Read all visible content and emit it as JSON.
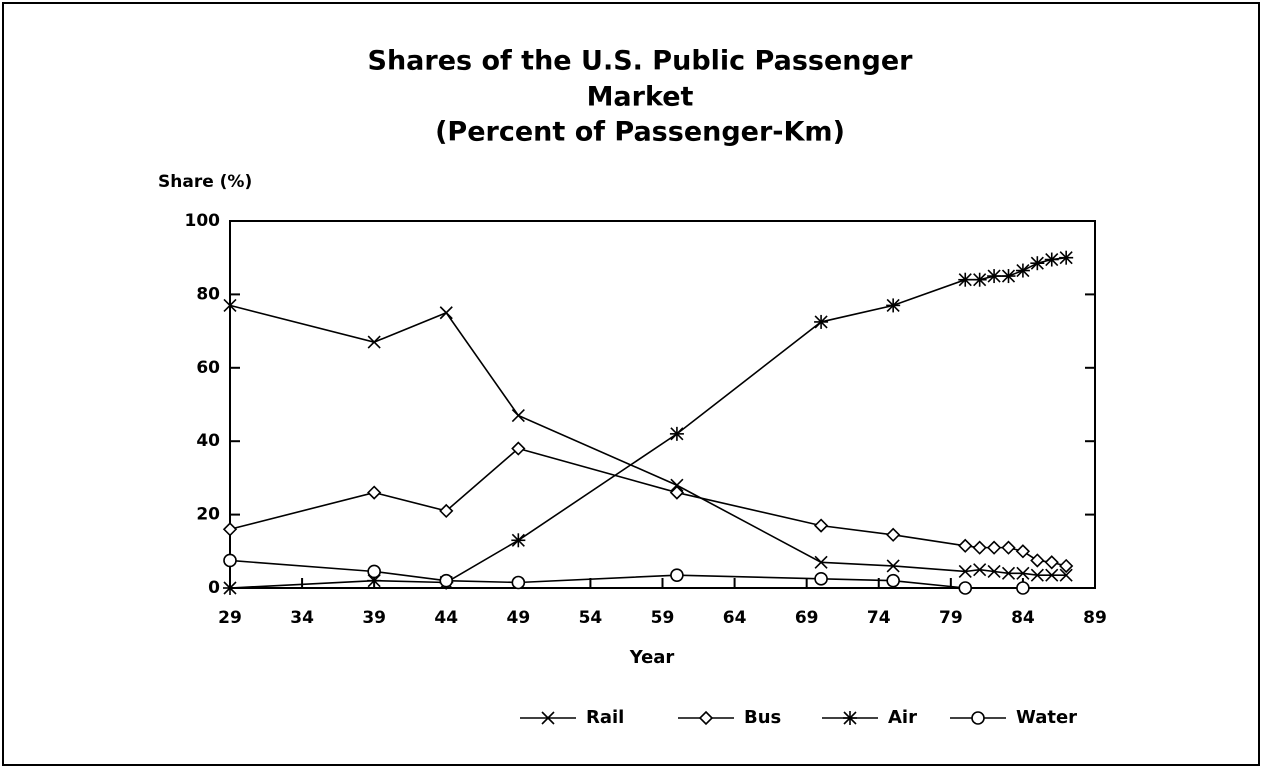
{
  "chart_data": {
    "type": "line",
    "title": [
      "Shares of the U.S. Public Passenger",
      "Market",
      "(Percent of Passenger-Km)"
    ],
    "y_label": "Share (%)",
    "x_label": "Year",
    "x": [
      29,
      39,
      44,
      49,
      60,
      70,
      75,
      80,
      81,
      82,
      83,
      84,
      85,
      86,
      87
    ],
    "xlim": [
      29,
      89
    ],
    "xticks": [
      29,
      34,
      39,
      44,
      49,
      54,
      59,
      64,
      69,
      74,
      79,
      84,
      89
    ],
    "ylim": [
      0,
      100
    ],
    "yticks": [
      0,
      20,
      40,
      60,
      80,
      100
    ],
    "series": [
      {
        "name": "Rail",
        "color": "#000000",
        "marker": "x",
        "values": [
          77,
          67,
          75,
          47,
          28,
          7,
          6,
          4.5,
          5,
          4.5,
          4,
          4,
          3.5,
          3.5,
          3.5
        ]
      },
      {
        "name": "Bus",
        "color": "#000000",
        "marker": "diamond",
        "values": [
          16,
          26,
          21,
          38,
          26,
          17,
          14.5,
          11.5,
          11,
          11,
          11,
          10,
          7.5,
          7,
          6
        ]
      },
      {
        "name": "Air",
        "color": "#000000",
        "marker": "asterisk",
        "values": [
          0,
          2,
          1.5,
          13,
          42,
          72.5,
          77,
          84,
          84,
          85,
          85,
          86.5,
          88.5,
          89.5,
          90
        ]
      },
      {
        "name": "Water",
        "color": "#000000",
        "marker": "circle",
        "x": [
          29,
          39,
          44,
          49,
          60,
          70,
          75,
          80,
          84
        ],
        "values": [
          7.5,
          4.5,
          2,
          1.5,
          3.5,
          2.5,
          2,
          0,
          0
        ]
      }
    ]
  }
}
